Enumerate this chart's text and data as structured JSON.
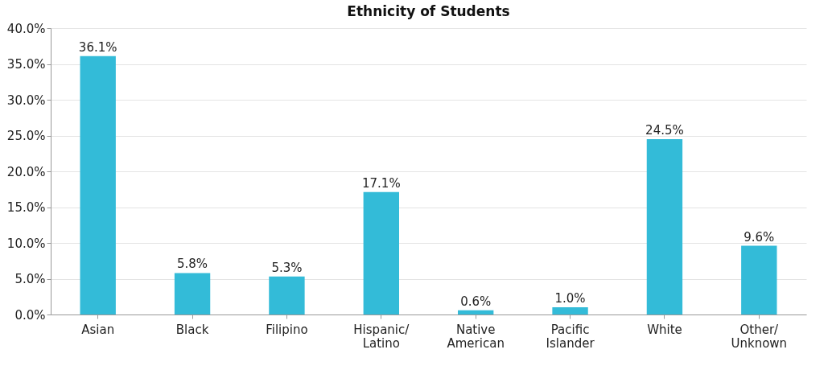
{
  "chart_data": {
    "type": "bar",
    "title": "Ethnicity of Students",
    "categories": [
      "Asian",
      "Black",
      "Filipino",
      "Hispanic/Latino",
      "Native American",
      "Pacific Islander",
      "White",
      "Other/Unknown"
    ],
    "values": [
      36.1,
      5.8,
      5.3,
      17.1,
      0.6,
      1.0,
      24.5,
      9.6
    ],
    "value_labels": [
      "36.1%",
      "5.8%",
      "5.3%",
      "17.1%",
      "0.6%",
      "1.0%",
      "24.5%",
      "9.6%"
    ],
    "color": "#33bbd8",
    "ylim": [
      0,
      40
    ],
    "yticks": [
      {
        "value": 0,
        "label": "0.0%"
      },
      {
        "value": 5,
        "label": "5.0%"
      },
      {
        "value": 10,
        "label": "10.0%"
      },
      {
        "value": 15,
        "label": "15.0%"
      },
      {
        "value": 20,
        "label": "20.0%"
      },
      {
        "value": 25,
        "label": "25.0%"
      },
      {
        "value": 30,
        "label": "30.0%"
      },
      {
        "value": 35,
        "label": "35.0%"
      },
      {
        "value": 40,
        "label": "40.0%"
      }
    ],
    "grid": "y"
  }
}
